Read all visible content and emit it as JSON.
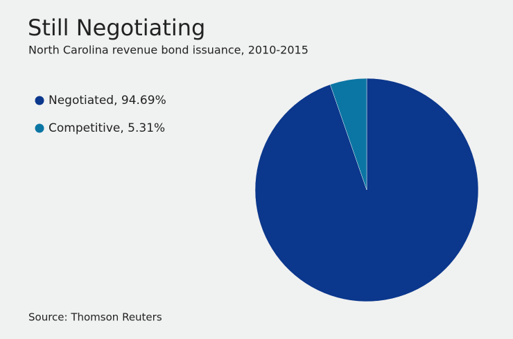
{
  "chart_data": {
    "type": "pie",
    "title": "Still Negotiating",
    "subtitle": "North Carolina revenue bond issuance, 2010-2015",
    "categories": [
      "Negotiated, 94.69%",
      "Competitive, 5.31%"
    ],
    "values": [
      94.69,
      5.31
    ],
    "colors": [
      "#0b378c",
      "#0b76a4"
    ],
    "legend": "top-left",
    "source": "Source: Thomson Reuters"
  }
}
